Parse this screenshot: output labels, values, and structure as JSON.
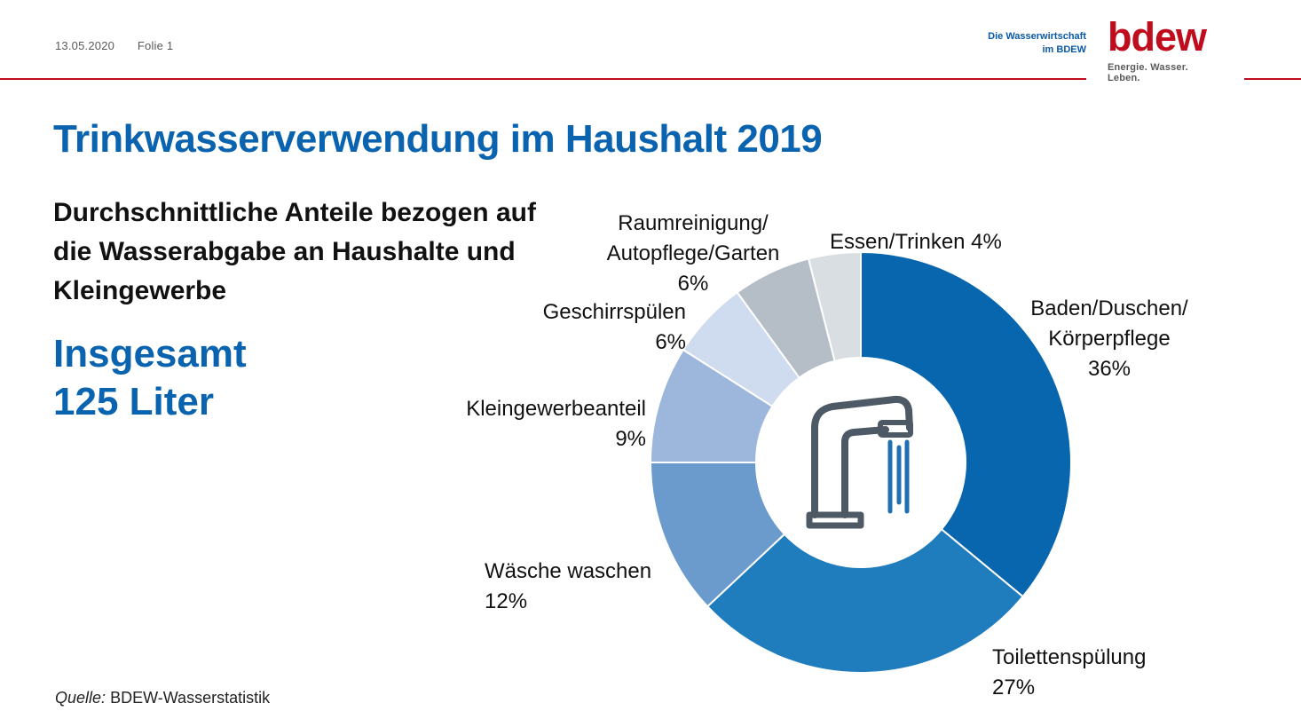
{
  "header": {
    "date": "13.05.2020",
    "slide": "Folie 1",
    "tagline_line1": "Die Wasserwirtschaft",
    "tagline_line2": "im BDEW",
    "logo_word": "bdew",
    "logo_tagline": "Energie. Wasser. Leben."
  },
  "title": "Trinkwasserverwendung im Haushalt 2019",
  "subtitle": "Durchschnittliche Anteile bezogen auf die Wasserabgabe an Haushalte und Kleingewerbe",
  "total_line1": "Insgesamt",
  "total_line2": "125 Liter",
  "source_label": "Quelle:",
  "source_value": "BDEW-Wasserstatistik",
  "colors": {
    "brand_red": "#c00d1e",
    "title_blue": "#0a63ae",
    "icon_gray": "#4d5a66",
    "icon_blue": "#1f6fb2"
  },
  "center_icon": "faucet-icon",
  "chart_data": {
    "type": "pie",
    "donut": true,
    "unit": "%",
    "slices": [
      {
        "label_lines": [
          "Baden/Duschen/",
          "Körperpflege",
          "36%"
        ],
        "value": 36,
        "color": "#0866ae"
      },
      {
        "label_lines": [
          "Toilettenspülung",
          "27%"
        ],
        "value": 27,
        "color": "#1f7cbd"
      },
      {
        "label_lines": [
          "Wäsche waschen",
          "12%"
        ],
        "value": 12,
        "color": "#6b9bcc"
      },
      {
        "label_lines": [
          "Kleingewerbeanteil",
          "9%"
        ],
        "value": 9,
        "color": "#9db7dc"
      },
      {
        "label_lines": [
          "Geschirrspülen",
          "6%"
        ],
        "value": 6,
        "color": "#cfdbee"
      },
      {
        "label_lines": [
          "Raumreinigung/",
          "Autopflege/Garten",
          "6%"
        ],
        "value": 6,
        "color": "#b5bec7"
      },
      {
        "label_lines": [
          "Essen/Trinken 4%"
        ],
        "value": 4,
        "color": "#d9dee3"
      }
    ]
  }
}
